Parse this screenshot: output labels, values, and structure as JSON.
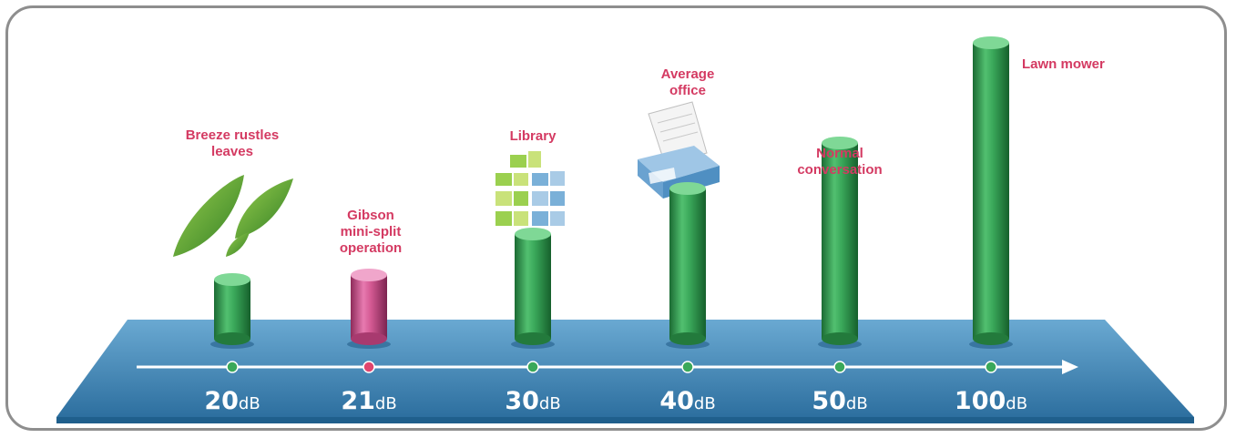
{
  "chart_data": {
    "type": "bar",
    "categories": [
      "20dB",
      "21dB",
      "30dB",
      "40dB",
      "50dB",
      "100dB"
    ],
    "values": [
      20,
      21,
      30,
      40,
      50,
      100
    ],
    "labels": [
      [
        "Breeze rustles",
        "leaves"
      ],
      [
        "Gibson",
        "mini-split",
        "operation"
      ],
      [
        "Library"
      ],
      [
        "Average",
        "office"
      ],
      [
        "Normal",
        "conversation"
      ],
      [
        "Lawn mower"
      ]
    ],
    "tick_numbers": [
      "20",
      "21",
      "30",
      "40",
      "50",
      "100"
    ],
    "tick_unit": "dB",
    "highlight_index": 1,
    "icons": [
      "leaves-icon",
      "",
      "library-building-icon",
      "printer-icon",
      "",
      ""
    ],
    "colors": {
      "bar": "#2e9e4e",
      "highlight_bar": "#d0588e",
      "label": "#d43a62",
      "platform": "#3d86b6",
      "axis": "#ffffff",
      "frame": "#8e8e8e"
    }
  }
}
